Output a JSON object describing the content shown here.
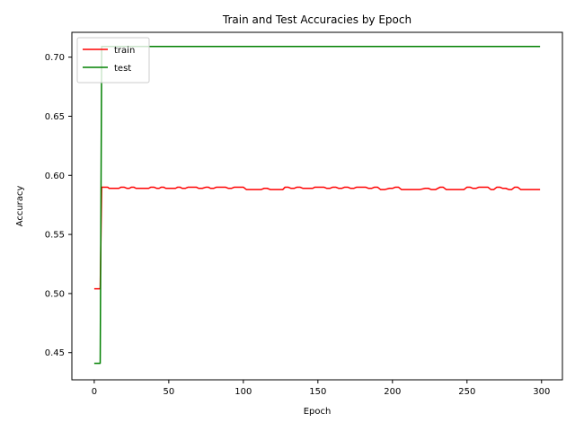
{
  "chart_data": {
    "type": "line",
    "title": "Train and Test Accuracies by Epoch",
    "xlabel": "Epoch",
    "ylabel": "Accuracy",
    "xlim": [
      -15,
      314
    ],
    "ylim": [
      0.427,
      0.721
    ],
    "x_ticks": [
      0,
      50,
      100,
      150,
      200,
      250,
      300
    ],
    "y_ticks": [
      0.45,
      0.5,
      0.55,
      0.6,
      0.65,
      0.7
    ],
    "y_tick_labels": [
      "0.45",
      "0.50",
      "0.55",
      "0.60",
      "0.65",
      "0.70"
    ],
    "grid": false,
    "legend_position": "top-left",
    "series": [
      {
        "name": "train",
        "color": "#ff0000",
        "points": [
          [
            0,
            0.504
          ],
          [
            4,
            0.504
          ],
          [
            5,
            0.59
          ],
          [
            9,
            0.59
          ],
          [
            10,
            0.589
          ],
          [
            15,
            0.589
          ],
          [
            18,
            0.59
          ],
          [
            22,
            0.589
          ],
          [
            25,
            0.59
          ],
          [
            28,
            0.589
          ],
          [
            35,
            0.589
          ],
          [
            38,
            0.59
          ],
          [
            42,
            0.589
          ],
          [
            45,
            0.59
          ],
          [
            48,
            0.589
          ],
          [
            53,
            0.589
          ],
          [
            56,
            0.59
          ],
          [
            59,
            0.589
          ],
          [
            63,
            0.59
          ],
          [
            67,
            0.59
          ],
          [
            70,
            0.589
          ],
          [
            75,
            0.59
          ],
          [
            78,
            0.589
          ],
          [
            82,
            0.59
          ],
          [
            86,
            0.59
          ],
          [
            90,
            0.589
          ],
          [
            94,
            0.59
          ],
          [
            98,
            0.59
          ],
          [
            102,
            0.588
          ],
          [
            110,
            0.588
          ],
          [
            114,
            0.589
          ],
          [
            118,
            0.588
          ],
          [
            125,
            0.588
          ],
          [
            128,
            0.59
          ],
          [
            132,
            0.589
          ],
          [
            136,
            0.59
          ],
          [
            140,
            0.589
          ],
          [
            145,
            0.589
          ],
          [
            148,
            0.59
          ],
          [
            152,
            0.59
          ],
          [
            156,
            0.589
          ],
          [
            160,
            0.59
          ],
          [
            164,
            0.589
          ],
          [
            168,
            0.59
          ],
          [
            172,
            0.589
          ],
          [
            176,
            0.59
          ],
          [
            180,
            0.59
          ],
          [
            184,
            0.589
          ],
          [
            188,
            0.59
          ],
          [
            192,
            0.588
          ],
          [
            198,
            0.589
          ],
          [
            202,
            0.59
          ],
          [
            206,
            0.588
          ],
          [
            215,
            0.588
          ],
          [
            222,
            0.589
          ],
          [
            226,
            0.588
          ],
          [
            232,
            0.59
          ],
          [
            236,
            0.588
          ],
          [
            246,
            0.588
          ],
          [
            250,
            0.59
          ],
          [
            254,
            0.589
          ],
          [
            258,
            0.59
          ],
          [
            262,
            0.59
          ],
          [
            266,
            0.588
          ],
          [
            270,
            0.59
          ],
          [
            274,
            0.589
          ],
          [
            278,
            0.588
          ],
          [
            282,
            0.59
          ],
          [
            286,
            0.588
          ],
          [
            299,
            0.588
          ]
        ]
      },
      {
        "name": "test",
        "color": "#008000",
        "points": [
          [
            0,
            0.441
          ],
          [
            4,
            0.441
          ],
          [
            5,
            0.709
          ],
          [
            299,
            0.709
          ]
        ]
      }
    ]
  }
}
